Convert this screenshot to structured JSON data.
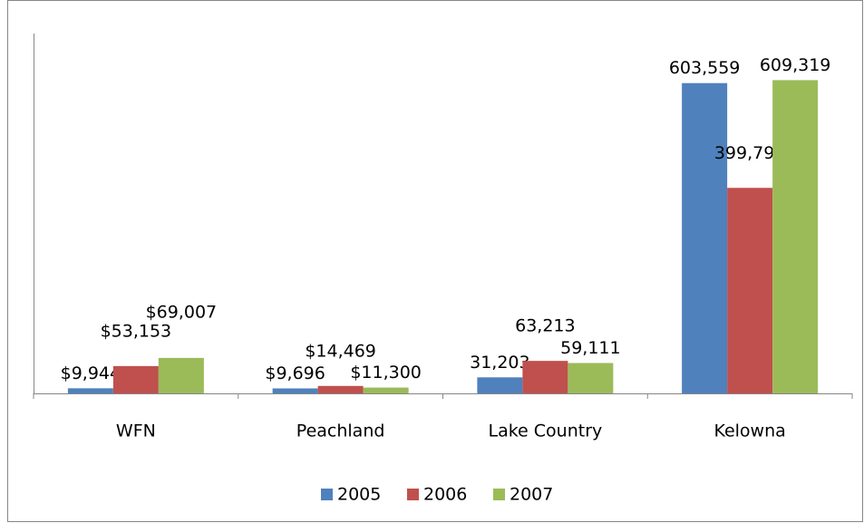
{
  "chart_data": {
    "type": "bar",
    "categories": [
      "WFN",
      "Peachland",
      "Lake Country",
      "Kelowna"
    ],
    "series": [
      {
        "name": "2005",
        "color": "#4f81bd",
        "values": [
          9944,
          9696,
          31203,
          603559
        ],
        "value_labels": [
          "$9,944",
          "$9,696",
          "31,203",
          "603,559"
        ]
      },
      {
        "name": "2006",
        "color": "#c0504d",
        "values": [
          53153,
          14469,
          63213,
          399799
        ],
        "value_labels": [
          "$53,153",
          "$14,469",
          "63,213",
          "399,799"
        ]
      },
      {
        "name": "2007",
        "color": "#9bbb59",
        "values": [
          69007,
          11300,
          59111,
          609319
        ],
        "value_labels": [
          "$69,007",
          "$11,300",
          "59,111",
          "609,319"
        ]
      }
    ],
    "ylim": [
      0,
      700000
    ],
    "legend": "bottom"
  }
}
